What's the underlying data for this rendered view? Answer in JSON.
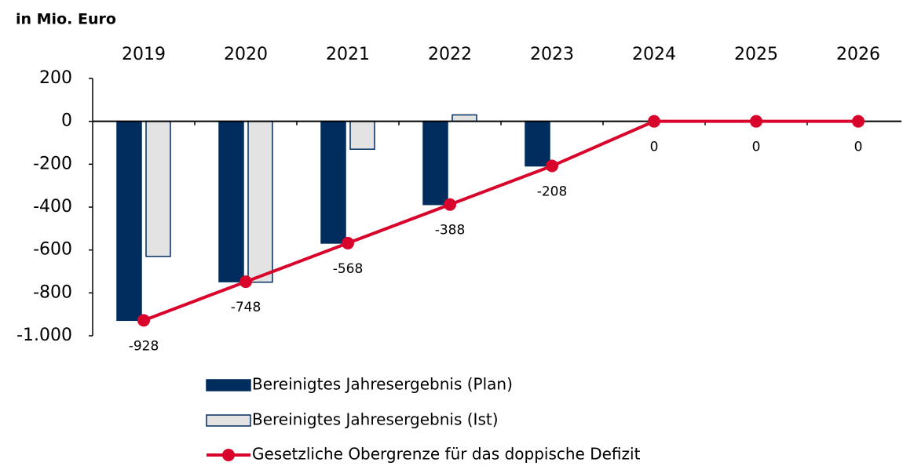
{
  "chart_data": {
    "type": "bar_line",
    "title": "in Mio. Euro",
    "categories": [
      "2019",
      "2020",
      "2021",
      "2022",
      "2023",
      "2024",
      "2025",
      "2026"
    ],
    "series": [
      {
        "name": "Bereinigtes Jahresergebnis (Plan)",
        "type": "bar",
        "color": "#002d5e",
        "values": [
          -928,
          -748,
          -568,
          -388,
          -208,
          null,
          null,
          null
        ]
      },
      {
        "name": "Bereinigtes Jahresergebnis (Ist)",
        "type": "bar",
        "color": "#e3e3e3",
        "values": [
          -630,
          -750,
          -130,
          30,
          null,
          null,
          null,
          null
        ]
      },
      {
        "name": "Gesetzliche Obergrenze für das doppische Defizit",
        "type": "line",
        "color": "#d9042b",
        "values": [
          -928,
          -748,
          -568,
          -388,
          -208,
          0,
          0,
          0
        ]
      }
    ],
    "ylim": [
      200,
      -1000
    ],
    "yticks": [
      200,
      0,
      -200,
      -400,
      -600,
      -800,
      {
        "value": -1000,
        "label": "-1.000"
      }
    ]
  }
}
